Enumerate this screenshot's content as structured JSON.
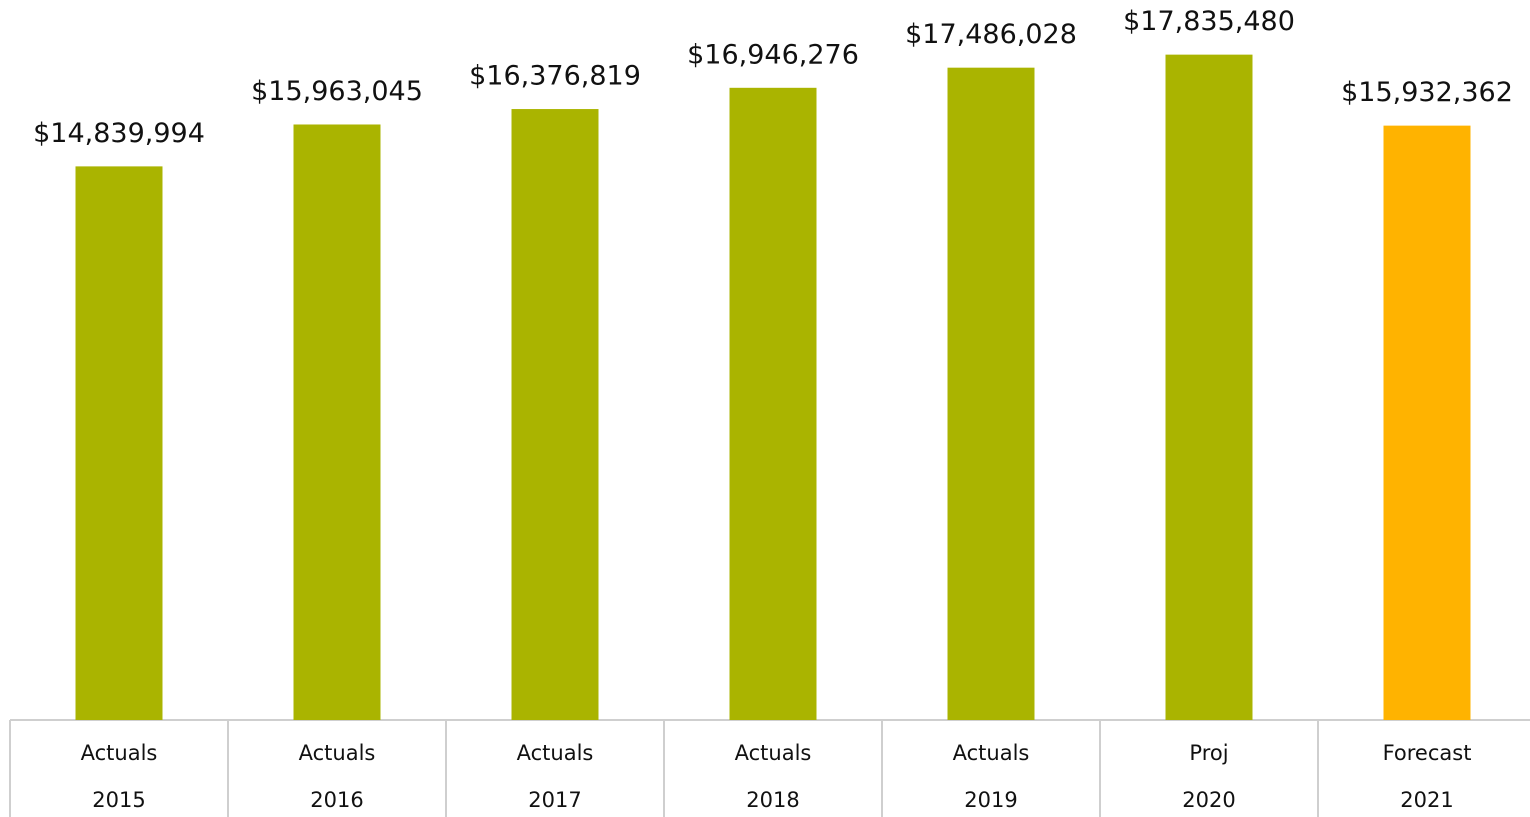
{
  "chart_data": {
    "type": "bar",
    "categories": [
      "2015",
      "2016",
      "2017",
      "2018",
      "2019",
      "2020",
      "2021"
    ],
    "category_groups": [
      "Actuals",
      "Actuals",
      "Actuals",
      "Actuals",
      "Actuals",
      "Proj",
      "Forecast"
    ],
    "values": [
      14839994,
      15963045,
      16376819,
      16946276,
      17486028,
      17835480,
      15932362
    ],
    "value_labels": [
      "$14,839,994",
      "$15,963,045",
      "$16,376,819",
      "$16,946,276",
      "$17,486,028",
      "$17,835,480",
      "$15,932,362"
    ],
    "colors": [
      "#aab400",
      "#aab400",
      "#aab400",
      "#aab400",
      "#aab400",
      "#aab400",
      "#ffb300"
    ],
    "ylim": [
      0,
      19300000
    ]
  }
}
